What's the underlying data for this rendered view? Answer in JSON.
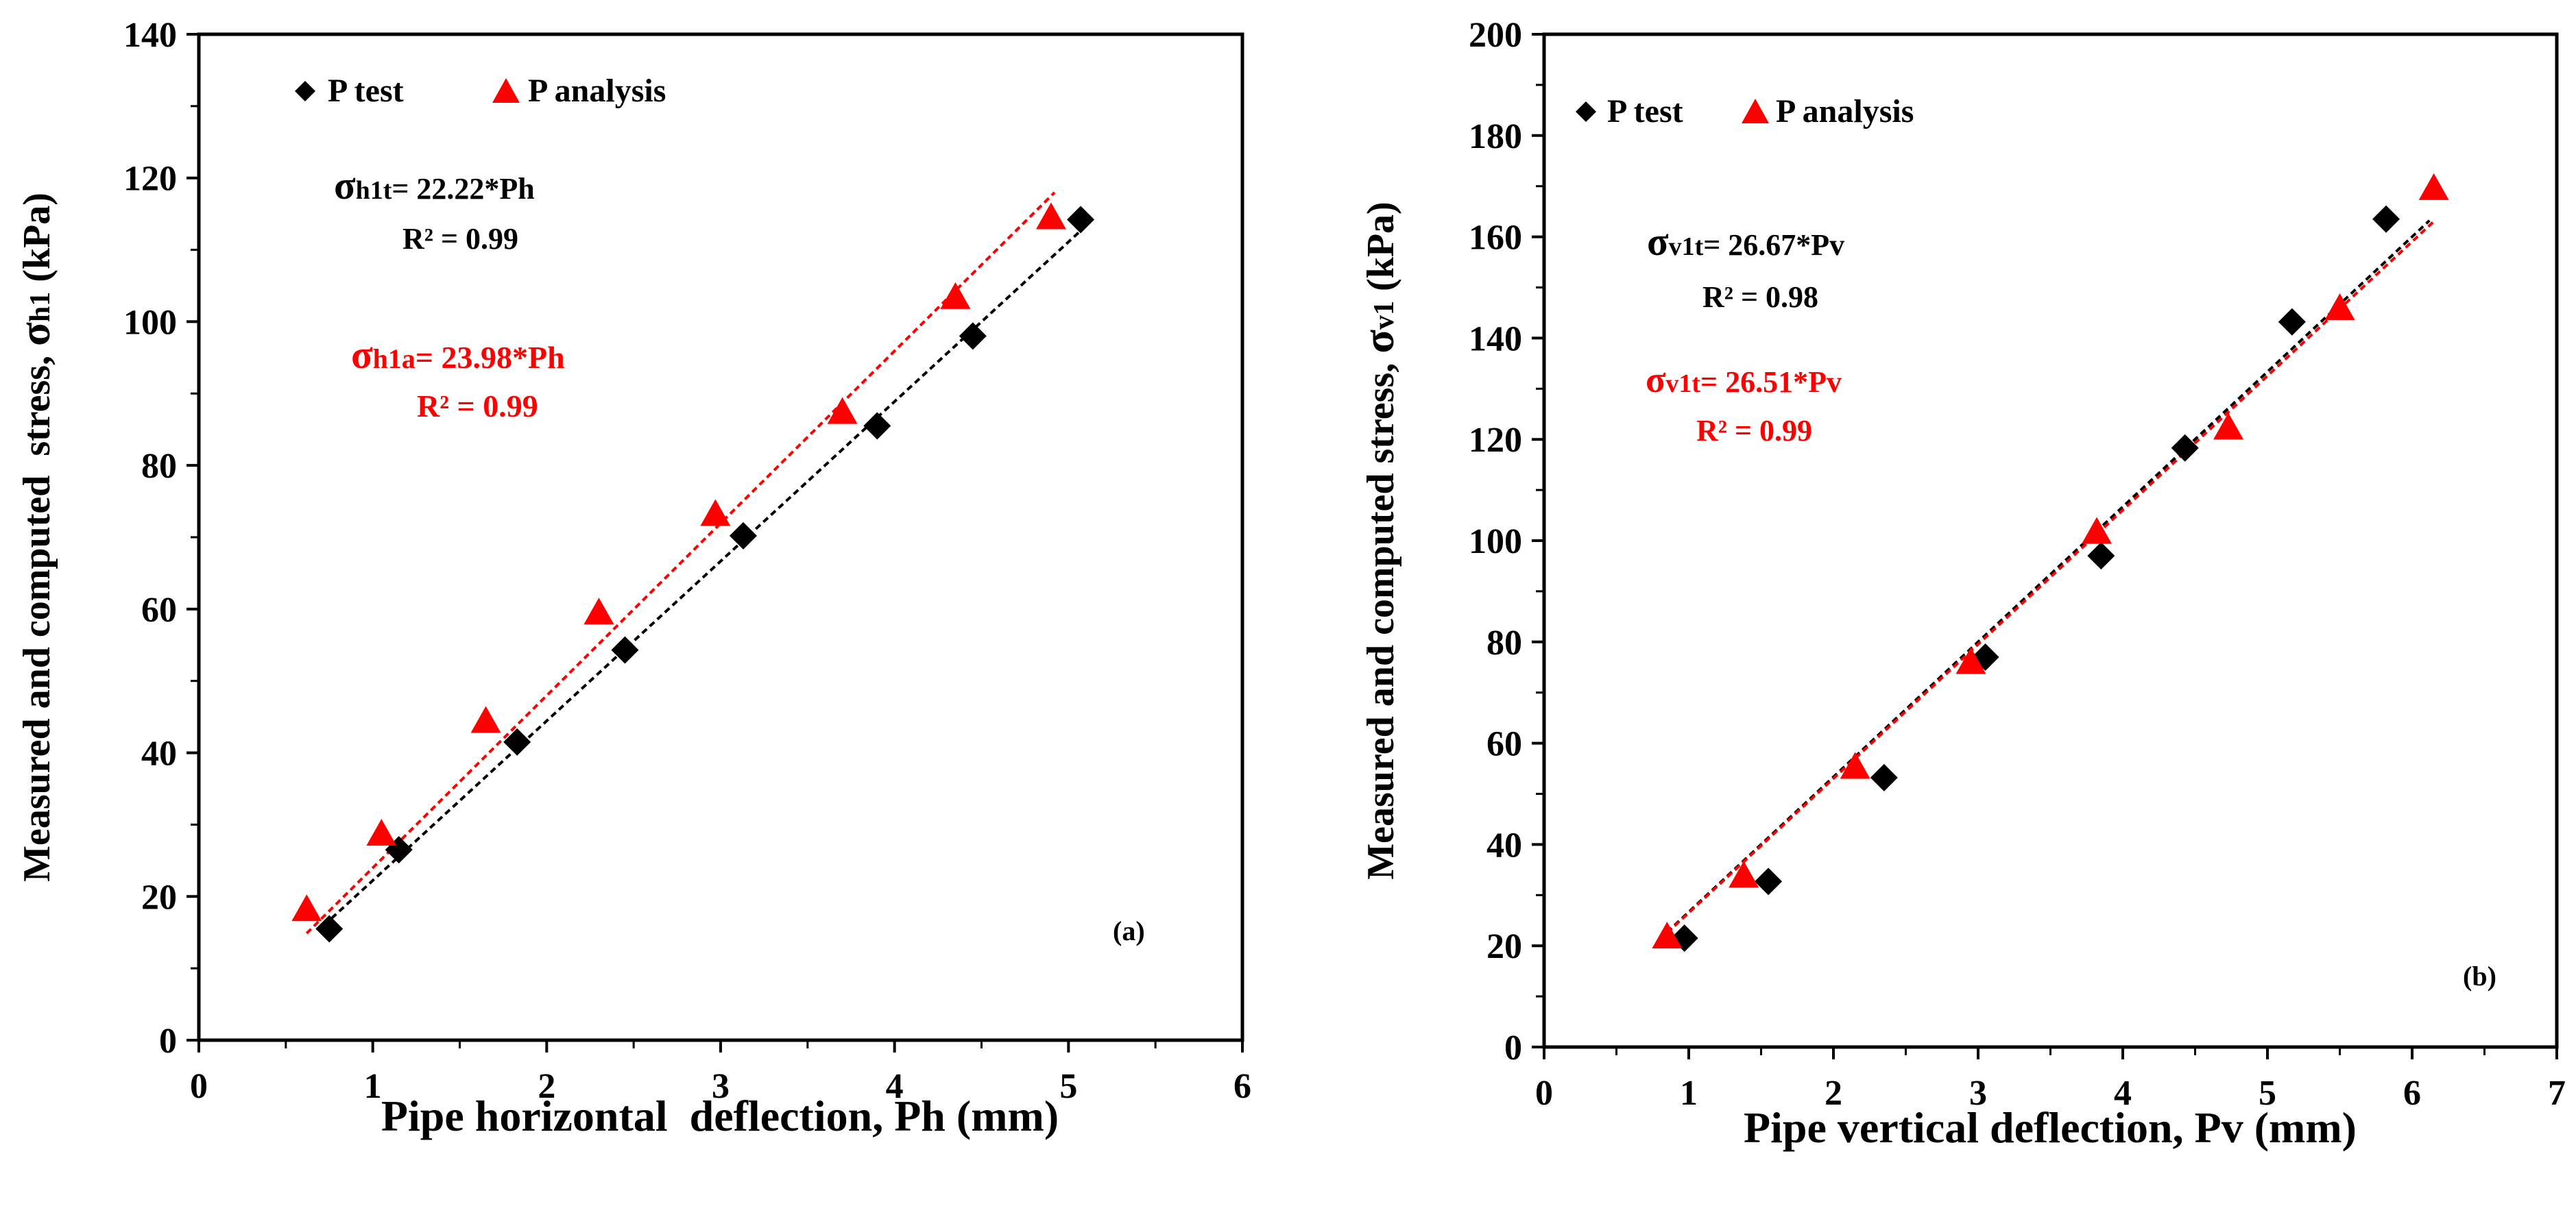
{
  "chart_data": [
    {
      "type": "scatter",
      "panel_label": "(a)",
      "xlabel": "Pipe horizontal  deflection, Ph (mm)",
      "ylabel_prefix": "Measured and computed  stress, ",
      "ylabel_sym": "σ",
      "ylabel_sub": "h1",
      "ylabel_suffix": " (kPa)",
      "xlim": [
        0,
        6
      ],
      "ylim": [
        0,
        140
      ],
      "xticks": [
        0,
        1,
        2,
        3,
        4,
        5,
        6
      ],
      "yticks": [
        0,
        20,
        40,
        60,
        80,
        100,
        120,
        140
      ],
      "legend": [
        {
          "name": "P test",
          "marker": "diamond",
          "color": "#000000"
        },
        {
          "name": "P analysis",
          "marker": "triangle",
          "color": "#ff0000"
        }
      ],
      "series": [
        {
          "name": "P test",
          "marker": "diamond",
          "color": "#000000",
          "x": [
            0.75,
            1.15,
            1.83,
            2.45,
            3.13,
            3.9,
            4.45,
            5.07
          ],
          "y": [
            15.5,
            26.5,
            41.5,
            54.3,
            70.2,
            85.5,
            98,
            114.2
          ],
          "trend": {
            "x": [
              0.72,
              5.12
            ],
            "slope": 22.22
          }
        },
        {
          "name": "P analysis",
          "marker": "triangle",
          "color": "#ff0000",
          "x": [
            0.62,
            1.05,
            1.65,
            2.3,
            2.97,
            3.7,
            4.35,
            4.9
          ],
          "y": [
            18,
            28.5,
            44.2,
            59.3,
            73,
            87.2,
            103.2,
            114.3
          ],
          "trend": {
            "x": [
              0.62,
              4.92
            ],
            "slope": 23.98
          }
        }
      ],
      "annotations": [
        {
          "sym": "σ",
          "sub": "h1t",
          "eq": "= 22.22*Ph",
          "r2": "R² = 0.99",
          "color": "#000000"
        },
        {
          "sym": "σ",
          "sub": "h1a",
          "eq": "= 23.98*Ph",
          "r2": "R² = 0.99",
          "color": "#ff0000"
        }
      ]
    },
    {
      "type": "scatter",
      "panel_label": "(b)",
      "xlabel": "Pipe vertical deflection, Pv (mm)",
      "ylabel_prefix": "Measured and computed stress, ",
      "ylabel_sym": "σ",
      "ylabel_sub": "v1",
      "ylabel_suffix": " (kPa)",
      "xlim": [
        0,
        7
      ],
      "ylim": [
        0,
        200
      ],
      "xticks": [
        0,
        1,
        2,
        3,
        4,
        5,
        6,
        7
      ],
      "yticks": [
        0,
        20,
        40,
        60,
        80,
        100,
        120,
        140,
        160,
        180,
        200
      ],
      "legend": [
        {
          "name": "P test",
          "marker": "diamond",
          "color": "#000000"
        },
        {
          "name": "P analysis",
          "marker": "triangle",
          "color": "#ff0000"
        }
      ],
      "series": [
        {
          "name": "P test",
          "marker": "diamond",
          "color": "#000000",
          "x": [
            0.97,
            1.55,
            2.35,
            3.05,
            3.85,
            4.43,
            5.17,
            5.82
          ],
          "y": [
            21.5,
            32.7,
            53.2,
            77,
            97,
            118.3,
            143.2,
            163.5
          ],
          "trend": {
            "x": [
              0.85,
              6.12
            ],
            "slope": 26.67
          }
        },
        {
          "name": "P analysis",
          "marker": "triangle",
          "color": "#ff0000",
          "x": [
            0.85,
            1.38,
            2.15,
            2.95,
            3.82,
            4.73,
            5.5,
            6.15
          ],
          "y": [
            21.5,
            33.5,
            55,
            75.7,
            101.4,
            122,
            145.6,
            169.3
          ],
          "trend": {
            "x": [
              0.85,
              6.15
            ],
            "slope": 26.51
          }
        }
      ],
      "annotations": [
        {
          "sym": "σ",
          "sub": "v1t",
          "eq": "= 26.67*Pv",
          "r2": "R² = 0.98",
          "color": "#000000"
        },
        {
          "sym": "σ",
          "sub": "v1t",
          "eq": "= 26.51*Pv",
          "r2": "R² = 0.99",
          "color": "#ff0000"
        }
      ]
    }
  ]
}
